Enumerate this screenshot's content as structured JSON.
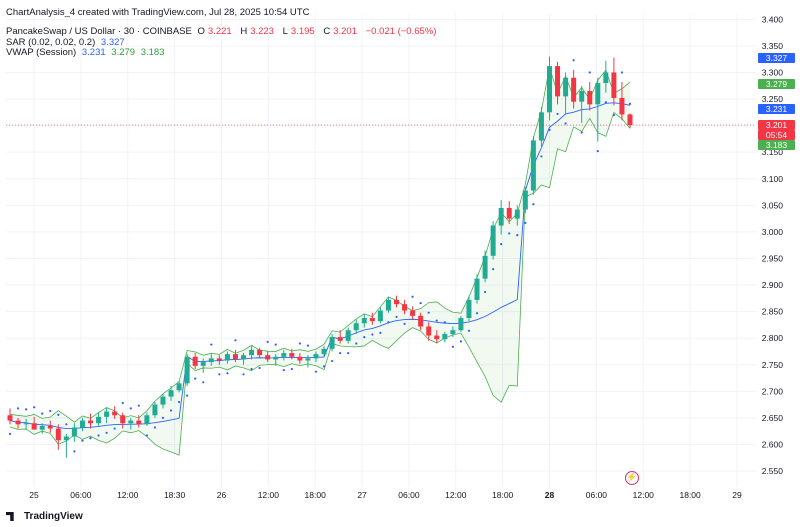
{
  "header": {
    "credit": "ChartAnalysis_4 created with TradingView.com, Jul 28, 2025 10:54 UTC",
    "symbol": "PancakeSwap / US Dollar · 30 · COINBASE",
    "open_label": "O",
    "open": "3.221",
    "high_label": "H",
    "high": "3.223",
    "low_label": "L",
    "low": "3.195",
    "close_label": "C",
    "close": "3.201",
    "change": "−0.021 (−0.65%)",
    "sar_label": "SAR (0.02, 0.02, 0.2)",
    "sar_value": "3.327",
    "vwap_label": "VWAP (Session)",
    "vwap_values": [
      "3.231",
      "3.279",
      "3.183"
    ]
  },
  "brand": "TradingView",
  "colors": {
    "up": "#22ab94",
    "down": "#f23645",
    "vwap": "#2962ff",
    "band": "#4caf50",
    "sar": "#2962ff"
  },
  "price_tags": [
    {
      "text": "3.327",
      "color": "#2962ff"
    },
    {
      "text": "3.279",
      "color": "#4caf50"
    },
    {
      "text": "3.231",
      "color": "#2962ff"
    },
    {
      "text": "3.201",
      "color": "#f23645"
    },
    {
      "text": "05:54",
      "color": "#f23645"
    },
    {
      "text": "3.183",
      "color": "#4caf50"
    }
  ],
  "chart_data": {
    "type": "candlestick",
    "ylim": [
      2.52,
      3.41
    ],
    "y_ticks": [
      "3.400",
      "3.350",
      "3.300",
      "3.250",
      "3.200",
      "3.150",
      "3.100",
      "3.050",
      "3.000",
      "2.950",
      "2.900",
      "2.850",
      "2.800",
      "2.750",
      "2.700",
      "2.650",
      "2.600",
      "2.550"
    ],
    "x_ticks": [
      "25",
      "06:00",
      "12:00",
      "18:30",
      "26",
      "12:00",
      "18:00",
      "27",
      "06:00",
      "12:00",
      "18:00",
      "28",
      "06:00",
      "12:00",
      "18:00",
      "29"
    ],
    "x_ticks_bold": [
      "28"
    ],
    "last_price": 3.201,
    "ohlc": [
      [
        2.655,
        2.668,
        2.638,
        2.645
      ],
      [
        2.645,
        2.65,
        2.63,
        2.638
      ],
      [
        2.638,
        2.648,
        2.628,
        2.64
      ],
      [
        2.64,
        2.652,
        2.632,
        2.628
      ],
      [
        2.628,
        2.64,
        2.62,
        2.635
      ],
      [
        2.635,
        2.645,
        2.622,
        2.63
      ],
      [
        2.63,
        2.638,
        2.59,
        2.608
      ],
      [
        2.608,
        2.62,
        2.575,
        2.615
      ],
      [
        2.615,
        2.64,
        2.605,
        2.632
      ],
      [
        2.632,
        2.65,
        2.625,
        2.645
      ],
      [
        2.645,
        2.658,
        2.63,
        2.64
      ],
      [
        2.64,
        2.66,
        2.635,
        2.652
      ],
      [
        2.652,
        2.67,
        2.64,
        2.662
      ],
      [
        2.662,
        2.672,
        2.648,
        2.655
      ],
      [
        2.655,
        2.66,
        2.63,
        2.64
      ],
      [
        2.64,
        2.65,
        2.628,
        2.645
      ],
      [
        2.645,
        2.655,
        2.632,
        2.638
      ],
      [
        2.638,
        2.66,
        2.635,
        2.655
      ],
      [
        2.655,
        2.68,
        2.65,
        2.675
      ],
      [
        2.675,
        2.695,
        2.668,
        2.69
      ],
      [
        2.69,
        2.71,
        2.682,
        2.702
      ],
      [
        2.702,
        2.72,
        2.698,
        2.715
      ],
      [
        2.715,
        2.77,
        2.71,
        2.765
      ],
      [
        2.765,
        2.772,
        2.742,
        2.748
      ],
      [
        2.748,
        2.762,
        2.735,
        2.755
      ],
      [
        2.755,
        2.77,
        2.748,
        2.762
      ],
      [
        2.762,
        2.768,
        2.75,
        2.758
      ],
      [
        2.758,
        2.775,
        2.752,
        2.77
      ],
      [
        2.77,
        2.778,
        2.755,
        2.76
      ],
      [
        2.76,
        2.772,
        2.75,
        2.768
      ],
      [
        2.768,
        2.785,
        2.76,
        2.778
      ],
      [
        2.778,
        2.782,
        2.762,
        2.768
      ],
      [
        2.768,
        2.775,
        2.755,
        2.76
      ],
      [
        2.76,
        2.77,
        2.748,
        2.765
      ],
      [
        2.765,
        2.778,
        2.758,
        2.772
      ],
      [
        2.772,
        2.78,
        2.76,
        2.765
      ],
      [
        2.765,
        2.772,
        2.752,
        2.758
      ],
      [
        2.758,
        2.768,
        2.745,
        2.762
      ],
      [
        2.762,
        2.775,
        2.755,
        2.77
      ],
      [
        2.77,
        2.785,
        2.765,
        2.78
      ],
      [
        2.78,
        2.808,
        2.775,
        2.802
      ],
      [
        2.802,
        2.815,
        2.79,
        2.795
      ],
      [
        2.795,
        2.82,
        2.79,
        2.815
      ],
      [
        2.815,
        2.835,
        2.808,
        2.828
      ],
      [
        2.828,
        2.845,
        2.82,
        2.838
      ],
      [
        2.838,
        2.848,
        2.825,
        2.832
      ],
      [
        2.832,
        2.858,
        2.828,
        2.852
      ],
      [
        2.852,
        2.878,
        2.848,
        2.872
      ],
      [
        2.872,
        2.88,
        2.858,
        2.864
      ],
      [
        2.864,
        2.872,
        2.845,
        2.852
      ],
      [
        2.852,
        2.86,
        2.835,
        2.842
      ],
      [
        2.842,
        2.848,
        2.815,
        2.822
      ],
      [
        2.822,
        2.83,
        2.795,
        2.805
      ],
      [
        2.805,
        2.815,
        2.79,
        2.798
      ],
      [
        2.798,
        2.812,
        2.792,
        2.808
      ],
      [
        2.808,
        2.822,
        2.802,
        2.815
      ],
      [
        2.815,
        2.842,
        2.812,
        2.838
      ],
      [
        2.838,
        2.88,
        2.832,
        2.872
      ],
      [
        2.872,
        2.92,
        2.865,
        2.912
      ],
      [
        2.912,
        2.965,
        2.905,
        2.955
      ],
      [
        2.955,
        3.02,
        2.948,
        3.012
      ],
      [
        3.012,
        3.06,
        2.995,
        3.045
      ],
      [
        3.045,
        3.058,
        3.015,
        3.025
      ],
      [
        3.025,
        3.05,
        3.012,
        3.042
      ],
      [
        3.042,
        3.085,
        3.035,
        3.078
      ],
      [
        3.078,
        3.18,
        3.07,
        3.172
      ],
      [
        3.172,
        3.235,
        3.16,
        3.225
      ],
      [
        3.225,
        3.33,
        3.21,
        3.312
      ],
      [
        3.312,
        3.32,
        3.24,
        3.255
      ],
      [
        3.255,
        3.3,
        3.222,
        3.29
      ],
      [
        3.29,
        3.305,
        3.232,
        3.245
      ],
      [
        3.245,
        3.275,
        3.205,
        3.265
      ],
      [
        3.265,
        3.282,
        3.228,
        3.24
      ],
      [
        3.24,
        3.29,
        3.17,
        3.28
      ],
      [
        3.28,
        3.322,
        3.262,
        3.3
      ],
      [
        3.3,
        3.328,
        3.238,
        3.252
      ],
      [
        3.252,
        3.282,
        3.21,
        3.221
      ],
      [
        3.221,
        3.223,
        3.195,
        3.201
      ]
    ],
    "x_label": "",
    "y_label": ""
  }
}
